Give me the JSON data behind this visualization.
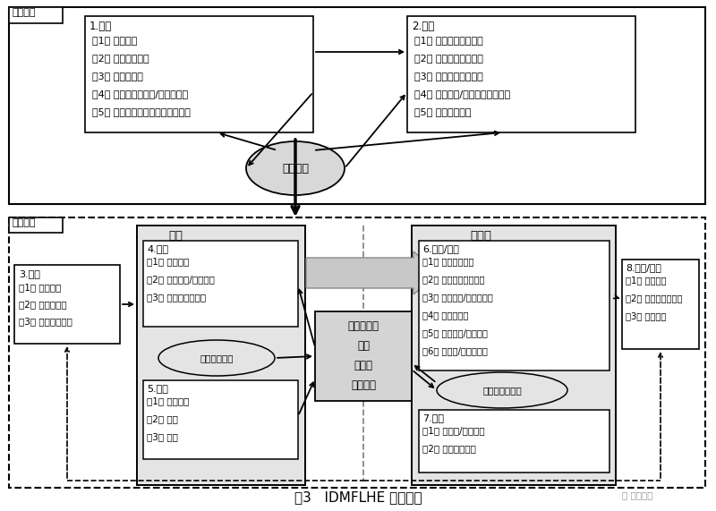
{
  "title": "图3   IDMFLHE 最终模型",
  "bg_color": "#ffffff",
  "course_level_label": "课程层面",
  "classroom_level_label": "课堂层面",
  "online_label": "在线",
  "face_label": "面对面",
  "box1_title": "1.分析",
  "box1_lines": [
    "（1） 目标分析",
    "（2） 宏观内容分析",
    "（3） 学习者分析",
    "（4） 技术支持的资源/环境的分析",
    "（5） 为在线和面对面教学分配内容"
  ],
  "box2_title": "2.设计",
  "box2_lines": [
    "（1） 设计宏观内容大纲",
    "（2） 宏观教学策略设计",
    "（3） 宏观学习活动设计",
    "（4） 课堂取向/课程结构指南设计",
    "（5） 宏观评价设计"
  ],
  "ellipse1_label": "课程原型",
  "box3_title": "3.分析",
  "box3_lines": [
    "（1） 目标分析",
    "（2） 学习者分析",
    "（3） 微观内容分析"
  ],
  "box4_title": "4.设计",
  "box4_lines": [
    "（1） 内容设计",
    "（2） 检验任务/测验设计",
    "（3） 学习时间表设计"
  ],
  "box5_title": "5.开发",
  "box5_lines": [
    "（1） 材料开发",
    "（2） 拍摄",
    "（3） 编辑"
  ],
  "ellipse2_label": "在线课程原型",
  "center_lines": [
    "可用性测试",
    "教师",
    "设计者",
    "技术人员"
  ],
  "box6_title": "6.分析/设计",
  "box6_lines": [
    "（1） 在线内容分析",
    "（2） 微观学习活动设计",
    "（3） 小组讨论/脚手架设计",
    "（4） 微讲座设计",
    "（5） 反思任务/评价设计",
    "（6） 形成性/总结性评价"
  ],
  "box7_title": "7.开发",
  "box7_lines": [
    "（1） 工作表/测试开发",
    "（2） 教师手册开发"
  ],
  "ellipse3_label": "面对面课程原型",
  "box8_title": "8.实施/评价",
  "box8_lines": [
    "（1） 在线实施",
    "（2） 面对面课堂实施",
    "（3） 课堂反馈"
  ],
  "watermark": "数字教育"
}
